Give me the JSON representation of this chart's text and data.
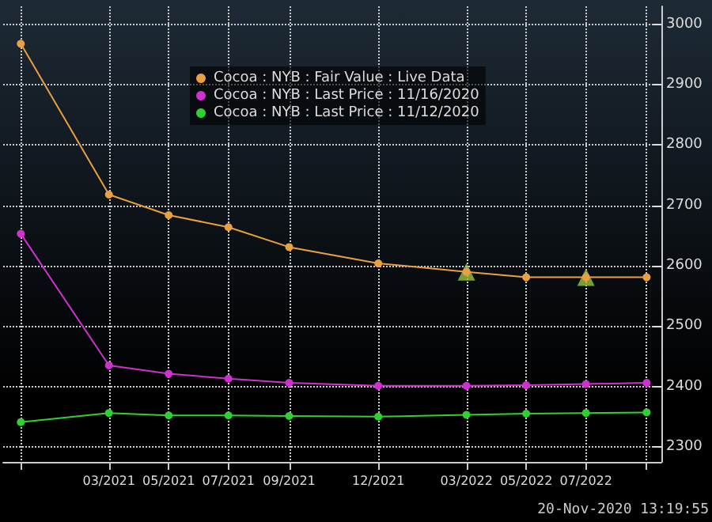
{
  "chart_data": {
    "type": "line",
    "x": [
      "2020-12",
      "2021-03",
      "2021-05",
      "2021-07",
      "2021-09",
      "2021-12",
      "2022-03",
      "2022-05",
      "2022-07",
      "2022-09"
    ],
    "series": [
      {
        "name": "Cocoa : NYB : Fair Value : Live Data",
        "color": "#e8a040",
        "values": [
          2968,
          2718,
          2684,
          2664,
          2631,
          2604,
          2590,
          2581,
          2581,
          2581
        ]
      },
      {
        "name": "Cocoa : NYB : Last Price : 11/16/2020",
        "color": "#d030d0",
        "values": [
          2653,
          2435,
          2421,
          2413,
          2406,
          2401,
          2401,
          2402,
          2404,
          2406
        ]
      },
      {
        "name": "Cocoa : NYB : Last Price : 11/12/2020",
        "color": "#30d030",
        "values": [
          2341,
          2356,
          2352,
          2352,
          2351,
          2350,
          2353,
          2355,
          2356,
          2357
        ]
      },
      {
        "type": "scatter",
        "marker": "triangle",
        "color": "#9cc040",
        "x": [
          "2022-03",
          "2022-07"
        ],
        "values": [
          2590,
          2581
        ]
      }
    ],
    "xlim": [
      "2020-11-13",
      "2022-09-16"
    ],
    "xticks": [
      {
        "value": "2020-12",
        "label": null
      },
      {
        "value": "2021-03",
        "label": "03/2021"
      },
      {
        "value": "2021-05",
        "label": "05/2021"
      },
      {
        "value": "2021-07",
        "label": "07/2021"
      },
      {
        "value": "2021-09",
        "label": "09/2021"
      },
      {
        "value": "2021-12",
        "label": "12/2021"
      },
      {
        "value": "2022-03",
        "label": "03/2022"
      },
      {
        "value": "2022-05",
        "label": "05/2022"
      },
      {
        "value": "2022-07",
        "label": "07/2022"
      },
      {
        "value": "2022-09",
        "label": null
      }
    ],
    "ylim": [
      2275,
      3030
    ],
    "yticks": [
      2300,
      2400,
      2500,
      2600,
      2700,
      2800,
      2900,
      3000
    ],
    "grid": true,
    "legend": "top",
    "marker": "circle",
    "line_style": "solid",
    "annotations": [
      "20-Nov-2020 13:19:55"
    ]
  }
}
